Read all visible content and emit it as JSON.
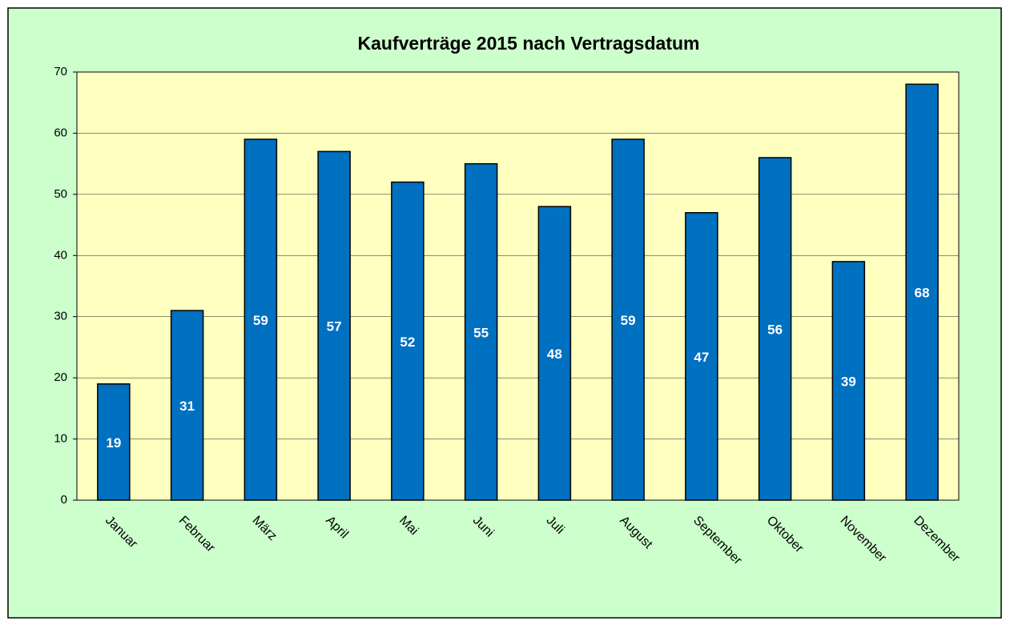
{
  "chart_data": {
    "type": "bar",
    "title": "Kaufverträge 2015 nach Vertragsdatum",
    "categories": [
      "Januar",
      "Februar",
      "März",
      "April",
      "Mai",
      "Juni",
      "Juli",
      "August",
      "September",
      "Oktober",
      "November",
      "Dezember"
    ],
    "values": [
      19,
      31,
      59,
      57,
      52,
      55,
      48,
      59,
      47,
      56,
      39,
      68
    ],
    "color": "#0070c0",
    "ylim": [
      0,
      70
    ],
    "yticks": [
      0,
      10,
      20,
      30,
      40,
      50,
      60,
      70
    ],
    "grid": true
  }
}
